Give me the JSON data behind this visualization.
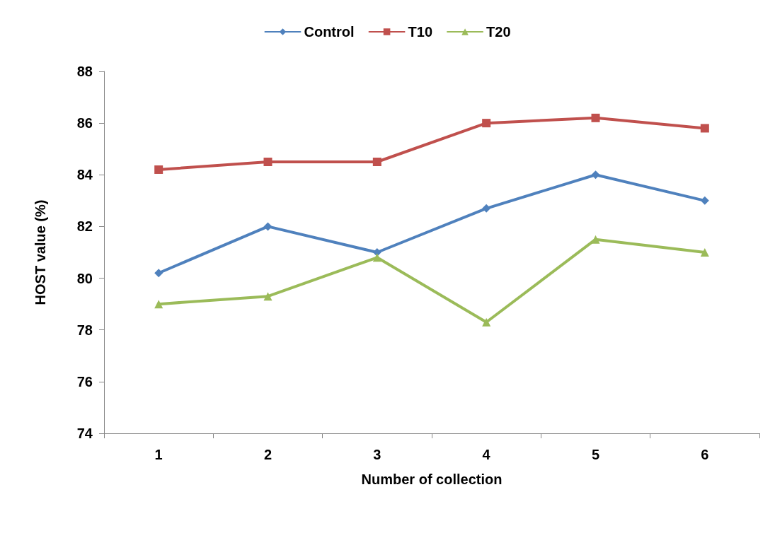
{
  "chart_data": {
    "type": "line",
    "xlabel": "Number of collection",
    "ylabel": "HOST value (%)",
    "categories": [
      "1",
      "2",
      "3",
      "4",
      "5",
      "6"
    ],
    "series": [
      {
        "name": "Control",
        "color": "#4f81bd",
        "marker": "diamond",
        "values": [
          80.2,
          82.0,
          81.0,
          82.7,
          84.0,
          83.0
        ]
      },
      {
        "name": "T10",
        "color": "#c0504d",
        "marker": "square",
        "values": [
          84.2,
          84.5,
          84.5,
          86.0,
          86.2,
          85.8
        ]
      },
      {
        "name": "T20",
        "color": "#9bbb59",
        "marker": "triangle",
        "values": [
          79.0,
          79.3,
          80.8,
          78.3,
          81.5,
          81.0
        ]
      }
    ],
    "ylim": [
      74,
      88
    ],
    "yticks": [
      74,
      76,
      78,
      80,
      82,
      84,
      86,
      88
    ],
    "legend": "top",
    "grid": false,
    "line_style": "solid"
  }
}
